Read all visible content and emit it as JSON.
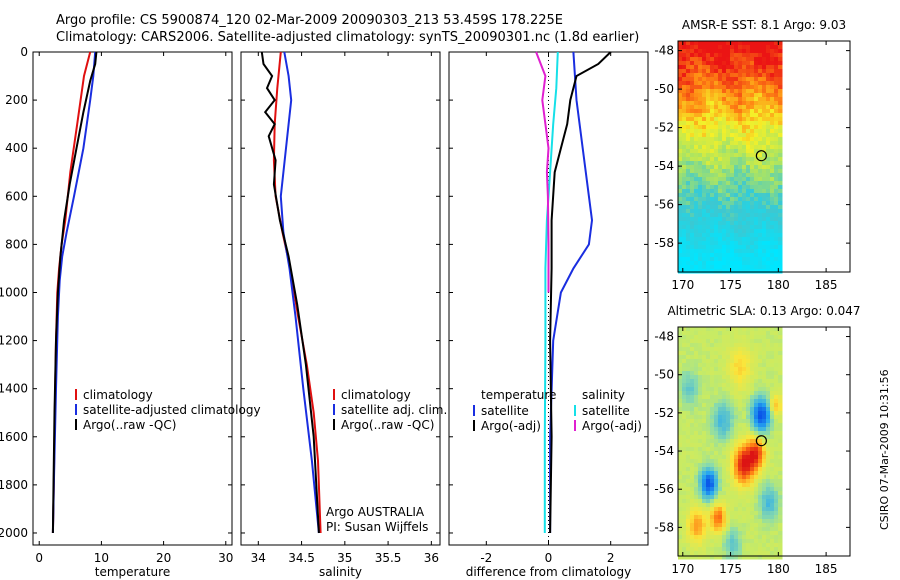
{
  "header": {
    "line1": "Argo profile: CS 5900874_120 02-Mar-2009 20090303_213 53.459S 178.225E",
    "line2": "Climatology: CARS2006. Satellite-adjusted climatology: synTS_20090301.nc (1.8d earlier)"
  },
  "footer": {
    "argo_center": "Argo AUSTRALIA",
    "pi": "PI: Susan Wijffels",
    "credit": "CSIRO 07-Mar-2009 10:31:56"
  },
  "colors": {
    "climatology": "#e01010",
    "satellite": "#1a2ee0",
    "argo": "#000000",
    "sat_diff_salinity": "#16e0e8",
    "argo_diff_salinity": "#e020d0"
  },
  "chart_data": [
    {
      "type": "line",
      "xlabel": "temperature",
      "ylabel": "",
      "xlim": [
        -1,
        31
      ],
      "ylim": [
        2050,
        0
      ],
      "x_ticks": [
        "0",
        "10",
        "20",
        "30"
      ],
      "y_ticks": [
        "0",
        "200",
        "400",
        "600",
        "800",
        "1000",
        "1200",
        "1400",
        "1600",
        "1800",
        "2000"
      ],
      "legend": [
        "climatology",
        "satellite-adjusted climatology",
        "Argo(..raw -QC)"
      ],
      "series": [
        {
          "name": "climatology",
          "x": [
            8.2,
            7.2,
            6.1,
            5.0,
            4.2,
            3.6,
            3.2,
            2.9,
            2.7,
            2.5,
            2.35,
            2.2
          ],
          "y": [
            0,
            100,
            300,
            500,
            700,
            800,
            900,
            1000,
            1200,
            1500,
            1800,
            2000
          ]
        },
        {
          "name": "satellite-adjusted climatology",
          "x": [
            9.0,
            8.7,
            8.2,
            7.1,
            5.6,
            4.4,
            3.7,
            3.3,
            3.0,
            2.7,
            2.4,
            2.2
          ],
          "y": [
            0,
            100,
            200,
            400,
            600,
            750,
            850,
            950,
            1100,
            1400,
            1750,
            2000
          ]
        },
        {
          "name": "Argo(..raw -QC)",
          "x": [
            9.2,
            9.0,
            8.2,
            7.1,
            6.0,
            4.9,
            4.0,
            3.4,
            3.0,
            2.7,
            2.45,
            2.3,
            2.2
          ],
          "y": [
            0,
            50,
            120,
            250,
            400,
            550,
            700,
            850,
            1000,
            1200,
            1500,
            1800,
            2000
          ]
        }
      ]
    },
    {
      "type": "line",
      "xlabel": "salinity",
      "ylabel": "",
      "xlim": [
        33.8,
        36.1
      ],
      "ylim": [
        2050,
        0
      ],
      "x_ticks": [
        "34",
        "34.5",
        "35",
        "35.5",
        "36"
      ],
      "legend": [
        "climatology",
        "satellite adj. clim.",
        "Argo(..raw -QC)"
      ],
      "series": [
        {
          "name": "climatology",
          "x": [
            34.26,
            34.22,
            34.19,
            34.18,
            34.2,
            34.28,
            34.37,
            34.46,
            34.56,
            34.64,
            34.69,
            34.72
          ],
          "y": [
            0,
            150,
            300,
            450,
            600,
            750,
            900,
            1100,
            1300,
            1500,
            1700,
            2000
          ]
        },
        {
          "name": "satellite adj. clim.",
          "x": [
            34.3,
            34.35,
            34.38,
            34.32,
            34.26,
            34.29,
            34.36,
            34.43,
            34.52,
            34.62,
            34.7
          ],
          "y": [
            0,
            100,
            200,
            400,
            600,
            750,
            900,
            1100,
            1400,
            1700,
            2000
          ]
        },
        {
          "name": "Argo(..raw -QC)",
          "x": [
            34.04,
            34.06,
            34.16,
            34.1,
            34.19,
            34.08,
            34.19,
            34.12,
            34.2,
            34.18,
            34.25,
            34.35,
            34.45,
            34.55,
            34.64,
            34.7
          ],
          "y": [
            0,
            50,
            100,
            150,
            200,
            250,
            300,
            350,
            450,
            550,
            700,
            850,
            1050,
            1300,
            1600,
            2000
          ]
        }
      ]
    },
    {
      "type": "line",
      "xlabel": "difference from climatology",
      "ylabel": "",
      "xlim": [
        -3.2,
        3.2
      ],
      "ylim": [
        2050,
        0
      ],
      "x_ticks": [
        "-2",
        "0",
        "2"
      ],
      "legend_groups": {
        "temperature": [
          "satellite",
          "Argo(-adj)"
        ],
        "salinity": [
          "satellite",
          "Argo(-adj)"
        ]
      },
      "series": [
        {
          "name": "temperature satellite",
          "x": [
            0.8,
            0.9,
            1.1,
            1.3,
            1.4,
            1.3,
            0.8,
            0.4,
            0.15,
            0.05,
            0.05
          ],
          "y": [
            0,
            200,
            400,
            600,
            700,
            800,
            900,
            1000,
            1200,
            1600,
            2000
          ]
        },
        {
          "name": "temperature Argo(-adj)",
          "x": [
            2.0,
            1.6,
            0.9,
            0.7,
            0.6,
            0.4,
            0.2,
            0.1,
            0.1,
            0.05,
            0.1,
            0.05
          ],
          "y": [
            0,
            50,
            100,
            200,
            300,
            400,
            500,
            700,
            900,
            1200,
            1600,
            2000
          ]
        },
        {
          "name": "salinity satellite",
          "x": [
            0.3,
            0.25,
            0.15,
            0.05,
            -0.05,
            -0.1,
            -0.1,
            -0.12,
            -0.12
          ],
          "y": [
            0,
            150,
            300,
            500,
            700,
            900,
            1200,
            1600,
            2000
          ]
        },
        {
          "name": "salinity Argo(-adj)",
          "x": [
            -0.4,
            -0.1,
            -0.2,
            -0.1,
            0.0,
            -0.05,
            -0.02,
            0.0,
            0.0
          ],
          "y": [
            0,
            100,
            200,
            300,
            400,
            500,
            600,
            800,
            1000
          ]
        }
      ]
    },
    {
      "type": "heatmap",
      "title": "AMSR-E SST: 8.1  Argo: 9.03",
      "xlim": [
        169.5,
        187.5
      ],
      "ylim": [
        -59.5,
        -47.5
      ],
      "x_ticks": [
        "170",
        "175",
        "180",
        "185"
      ],
      "y_ticks": [
        "-48",
        "-50",
        "-52",
        "-54",
        "-56",
        "-58"
      ],
      "data_extent_x": [
        169.5,
        180
      ],
      "argo_position": [
        178.225,
        -53.459
      ],
      "colormap_range": "cold (cyan) in south to warm (red) in north"
    },
    {
      "type": "heatmap",
      "title": "Altimetric SLA: 0.13  Argo: 0.047",
      "xlim": [
        169.5,
        187.5
      ],
      "ylim": [
        -59.5,
        -47.5
      ],
      "x_ticks": [
        "170",
        "175",
        "180",
        "185"
      ],
      "y_ticks": [
        "-48",
        "-50",
        "-52",
        "-54",
        "-56",
        "-58"
      ],
      "data_extent_x": [
        169.5,
        180
      ],
      "argo_position": [
        178.225,
        -53.459
      ]
    }
  ]
}
